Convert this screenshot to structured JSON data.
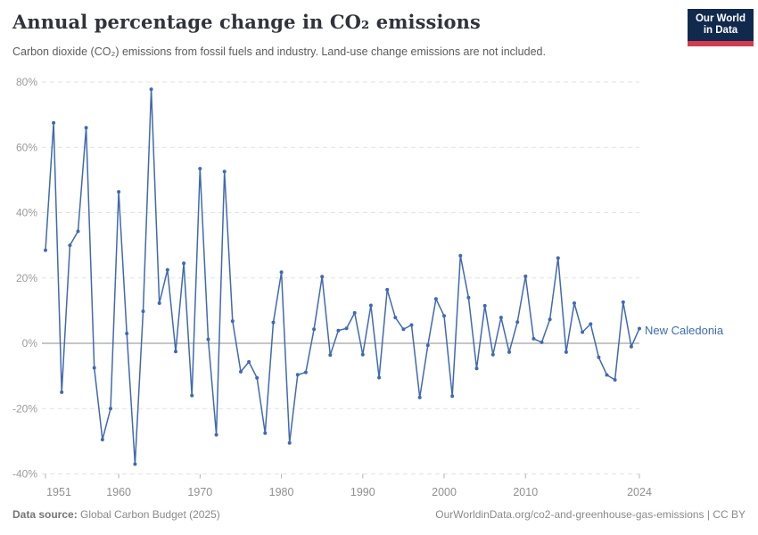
{
  "header": {
    "title": "Annual percentage change in CO₂ emissions",
    "subtitle": "Carbon dioxide (CO₂) emissions from fossil fuels and industry. Land-use change emissions are not included."
  },
  "logo": {
    "line1": "Our World",
    "line2": "in Data"
  },
  "entity_label": "New Caledonia",
  "footer": {
    "source_label": "Data source:",
    "source_value": " Global Carbon Budget (2025)",
    "credit": "OurWorldinData.org/co2-and-greenhouse-gas-emissions | CC BY"
  },
  "colors": {
    "line": "#4169b2",
    "marker": "#4169b2",
    "entity_label": "#3d6bb3",
    "grid": "#e2e2e2",
    "zero_line": "#8e8e8e",
    "tick_mark": "#b3b3b3",
    "y_axis_text": "#9b9b9b",
    "x_axis_text": "#909090",
    "logo_bg": "#12294e",
    "logo_red": "#d23b50"
  },
  "chart_data": {
    "type": "line",
    "title": "Annual percentage change in CO₂ emissions",
    "xlabel": "",
    "ylabel": "",
    "x": [
      1951,
      1952,
      1953,
      1954,
      1955,
      1956,
      1957,
      1958,
      1959,
      1960,
      1961,
      1962,
      1963,
      1964,
      1965,
      1966,
      1967,
      1968,
      1969,
      1970,
      1971,
      1972,
      1973,
      1974,
      1975,
      1976,
      1977,
      1978,
      1979,
      1980,
      1981,
      1982,
      1983,
      1984,
      1985,
      1986,
      1987,
      1988,
      1989,
      1990,
      1991,
      1992,
      1993,
      1994,
      1995,
      1996,
      1997,
      1998,
      1999,
      2000,
      2001,
      2002,
      2003,
      2004,
      2005,
      2006,
      2007,
      2008,
      2009,
      2010,
      2011,
      2012,
      2013,
      2014,
      2015,
      2016,
      2017,
      2018,
      2019,
      2020,
      2021,
      2022,
      2023,
      2024
    ],
    "series": [
      {
        "name": "New Caledonia",
        "values": [
          28.5,
          67.5,
          -15,
          30,
          34.3,
          66,
          -7.5,
          -29.5,
          -20,
          46.4,
          3,
          -37,
          9.8,
          77.8,
          12.3,
          22.5,
          -2.5,
          24.5,
          -16,
          53.5,
          1.2,
          -28,
          52.6,
          6.8,
          -8.7,
          -5.7,
          -10.6,
          -27.5,
          6.4,
          21.8,
          -30.5,
          -9.6,
          -8.9,
          4.3,
          20.4,
          -3.6,
          3.9,
          4.6,
          9.3,
          -3.5,
          11.6,
          -10.5,
          16.4,
          7.9,
          4.3,
          5.6,
          -16.6,
          -0.6,
          13.6,
          8.4,
          -16.2,
          26.8,
          14,
          -7.7,
          11.5,
          -3.5,
          7.9,
          -2.7,
          6.5,
          20.5,
          1.4,
          0.3,
          7.3,
          26.1,
          -2.7,
          12.3,
          3.4,
          5.9,
          -4.3,
          -9.7,
          -11.2,
          12.6,
          -1,
          4.5
        ]
      }
    ],
    "ylim": [
      -40,
      80
    ],
    "yticks": [
      80,
      60,
      40,
      20,
      0,
      -20,
      -40
    ],
    "ytick_suffix": "%",
    "xticks": [
      1951,
      1960,
      1970,
      1980,
      1990,
      2000,
      2010,
      2024
    ],
    "grid": "horizontal-dashed",
    "legend": "label-at-series-end"
  }
}
